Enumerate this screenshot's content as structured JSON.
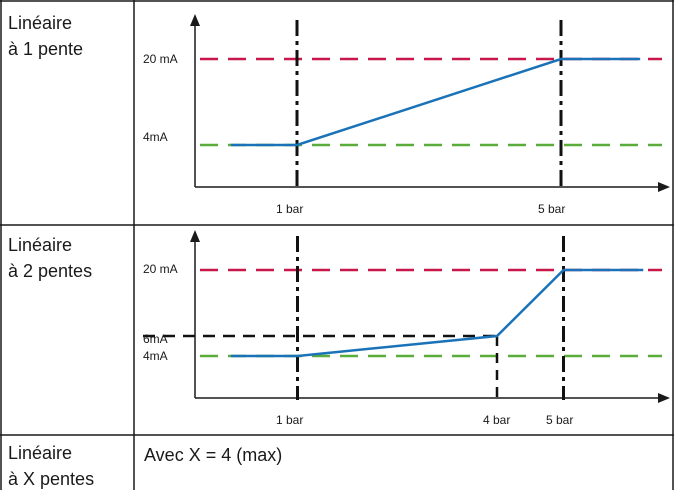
{
  "colors": {
    "grid_line": "#1a1a1a",
    "upper_limit": "#c8174b",
    "lower_limit": "#5aad3a",
    "signal": "#1a73b8",
    "marker": "#111111"
  },
  "rows": [
    {
      "label_line1": "Linéaire",
      "label_line2": "à 1 pente",
      "chart_data": {
        "type": "line",
        "title": "",
        "xlabel": "",
        "ylabel": "",
        "y_labels": {
          "high": "20 mA",
          "low": "4mA"
        },
        "x_labels": [
          "1 bar",
          "5 bar"
        ],
        "series": [
          {
            "values": [
              [
                0,
                4
              ],
              [
                1,
                4
              ],
              [
                5,
                20
              ],
              [
                6.2,
                20
              ]
            ]
          }
        ],
        "reference_lines": [
          {
            "kind": "horizontal",
            "y": 20,
            "color": "upper_limit",
            "style": "dashed"
          },
          {
            "kind": "horizontal",
            "y": 4,
            "color": "lower_limit",
            "style": "dashed"
          },
          {
            "kind": "vertical",
            "x": 1,
            "style": "dash-dot"
          },
          {
            "kind": "vertical",
            "x": 5,
            "style": "dash-dot"
          }
        ]
      }
    },
    {
      "label_line1": "Linéaire",
      "label_line2": "à 2 pentes",
      "chart_data": {
        "type": "line",
        "title": "",
        "xlabel": "",
        "ylabel": "",
        "y_labels": {
          "high": "20 mA",
          "mid": "6mA",
          "low": "4mA"
        },
        "x_labels": [
          "1 bar",
          "4 bar",
          "5 bar"
        ],
        "series": [
          {
            "values": [
              [
                0,
                4
              ],
              [
                1,
                4
              ],
              [
                4,
                6
              ],
              [
                5,
                20
              ],
              [
                6.2,
                20
              ]
            ]
          }
        ],
        "reference_lines": [
          {
            "kind": "horizontal",
            "y": 20,
            "color": "upper_limit",
            "style": "dashed"
          },
          {
            "kind": "horizontal",
            "y": 4,
            "color": "lower_limit",
            "style": "dashed"
          },
          {
            "kind": "horizontal",
            "y": 6,
            "style": "dashed-black"
          },
          {
            "kind": "vertical",
            "x": 1,
            "style": "dash-dot"
          },
          {
            "kind": "vertical",
            "x": 4,
            "style": "dashed-black"
          },
          {
            "kind": "vertical",
            "x": 5,
            "style": "dash-dot"
          }
        ]
      }
    },
    {
      "label_line1": "Linéaire",
      "label_line2": "à X pentes",
      "note": "Avec X = 4 (max)"
    }
  ]
}
